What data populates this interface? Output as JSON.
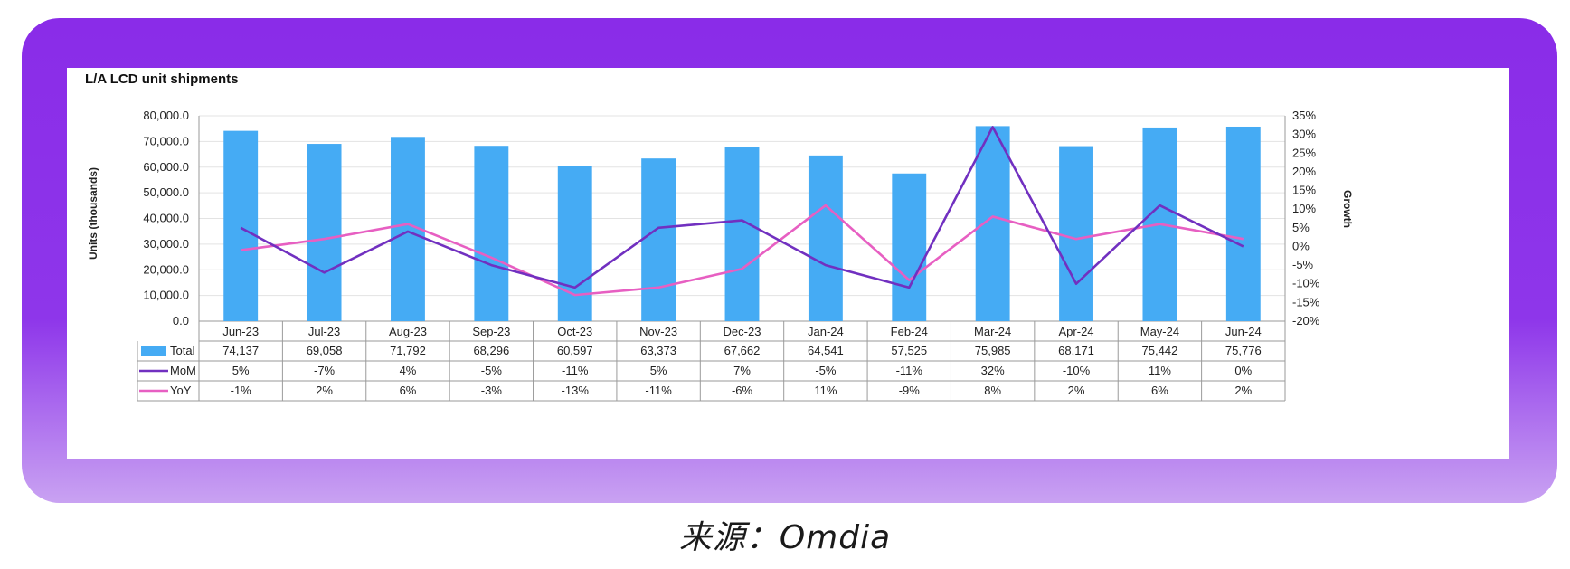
{
  "source_caption": "来源：Omdia",
  "chart_data": {
    "type": "bar",
    "title": "L/A LCD unit shipments",
    "ylabel": "Units (thousands)",
    "y2label": "Growth",
    "ylim": [
      0,
      80000
    ],
    "y2lim": [
      -20,
      35
    ],
    "y_ticks": [
      "0.0",
      "10,000.0",
      "20,000.0",
      "30,000.0",
      "40,000.0",
      "50,000.0",
      "60,000.0",
      "70,000.0",
      "80,000.0"
    ],
    "y2_ticks": [
      "-20%",
      "-15%",
      "-10%",
      "-5%",
      "0%",
      "5%",
      "10%",
      "15%",
      "20%",
      "25%",
      "30%",
      "35%"
    ],
    "categories": [
      "Jun-23",
      "Jul-23",
      "Aug-23",
      "Sep-23",
      "Oct-23",
      "Nov-23",
      "Dec-23",
      "Jan-24",
      "Feb-24",
      "Mar-24",
      "Apr-24",
      "May-24",
      "Jun-24"
    ],
    "grid": "horizontal",
    "legend": "data table below chart",
    "series": [
      {
        "name": "Total",
        "kind": "bar",
        "axis": "left",
        "color": "#45abf4",
        "values": [
          74137,
          69058,
          71792,
          68296,
          60597,
          63373,
          67662,
          64541,
          57525,
          75985,
          68171,
          75442,
          75776
        ],
        "labels": [
          "74,137",
          "69,058",
          "71,792",
          "68,296",
          "60,597",
          "63,373",
          "67,662",
          "64,541",
          "57,525",
          "75,985",
          "68,171",
          "75,442",
          "75,776"
        ]
      },
      {
        "name": "MoM",
        "kind": "line",
        "axis": "right",
        "color": "#7130c0",
        "values": [
          5,
          -7,
          4,
          -5,
          -11,
          5,
          7,
          -5,
          -11,
          32,
          -10,
          11,
          0
        ],
        "labels": [
          "5%",
          "-7%",
          "4%",
          "-5%",
          "-11%",
          "5%",
          "7%",
          "-5%",
          "-11%",
          "32%",
          "-10%",
          "11%",
          "0%"
        ]
      },
      {
        "name": "YoY",
        "kind": "line",
        "axis": "right",
        "color": "#e75fc2",
        "values": [
          -1,
          2,
          6,
          -3,
          -13,
          -11,
          -6,
          11,
          -9,
          8,
          2,
          6,
          2
        ],
        "labels": [
          "-1%",
          "2%",
          "6%",
          "-3%",
          "-13%",
          "-11%",
          "-6%",
          "11%",
          "-9%",
          "8%",
          "2%",
          "6%",
          "2%"
        ]
      }
    ]
  }
}
